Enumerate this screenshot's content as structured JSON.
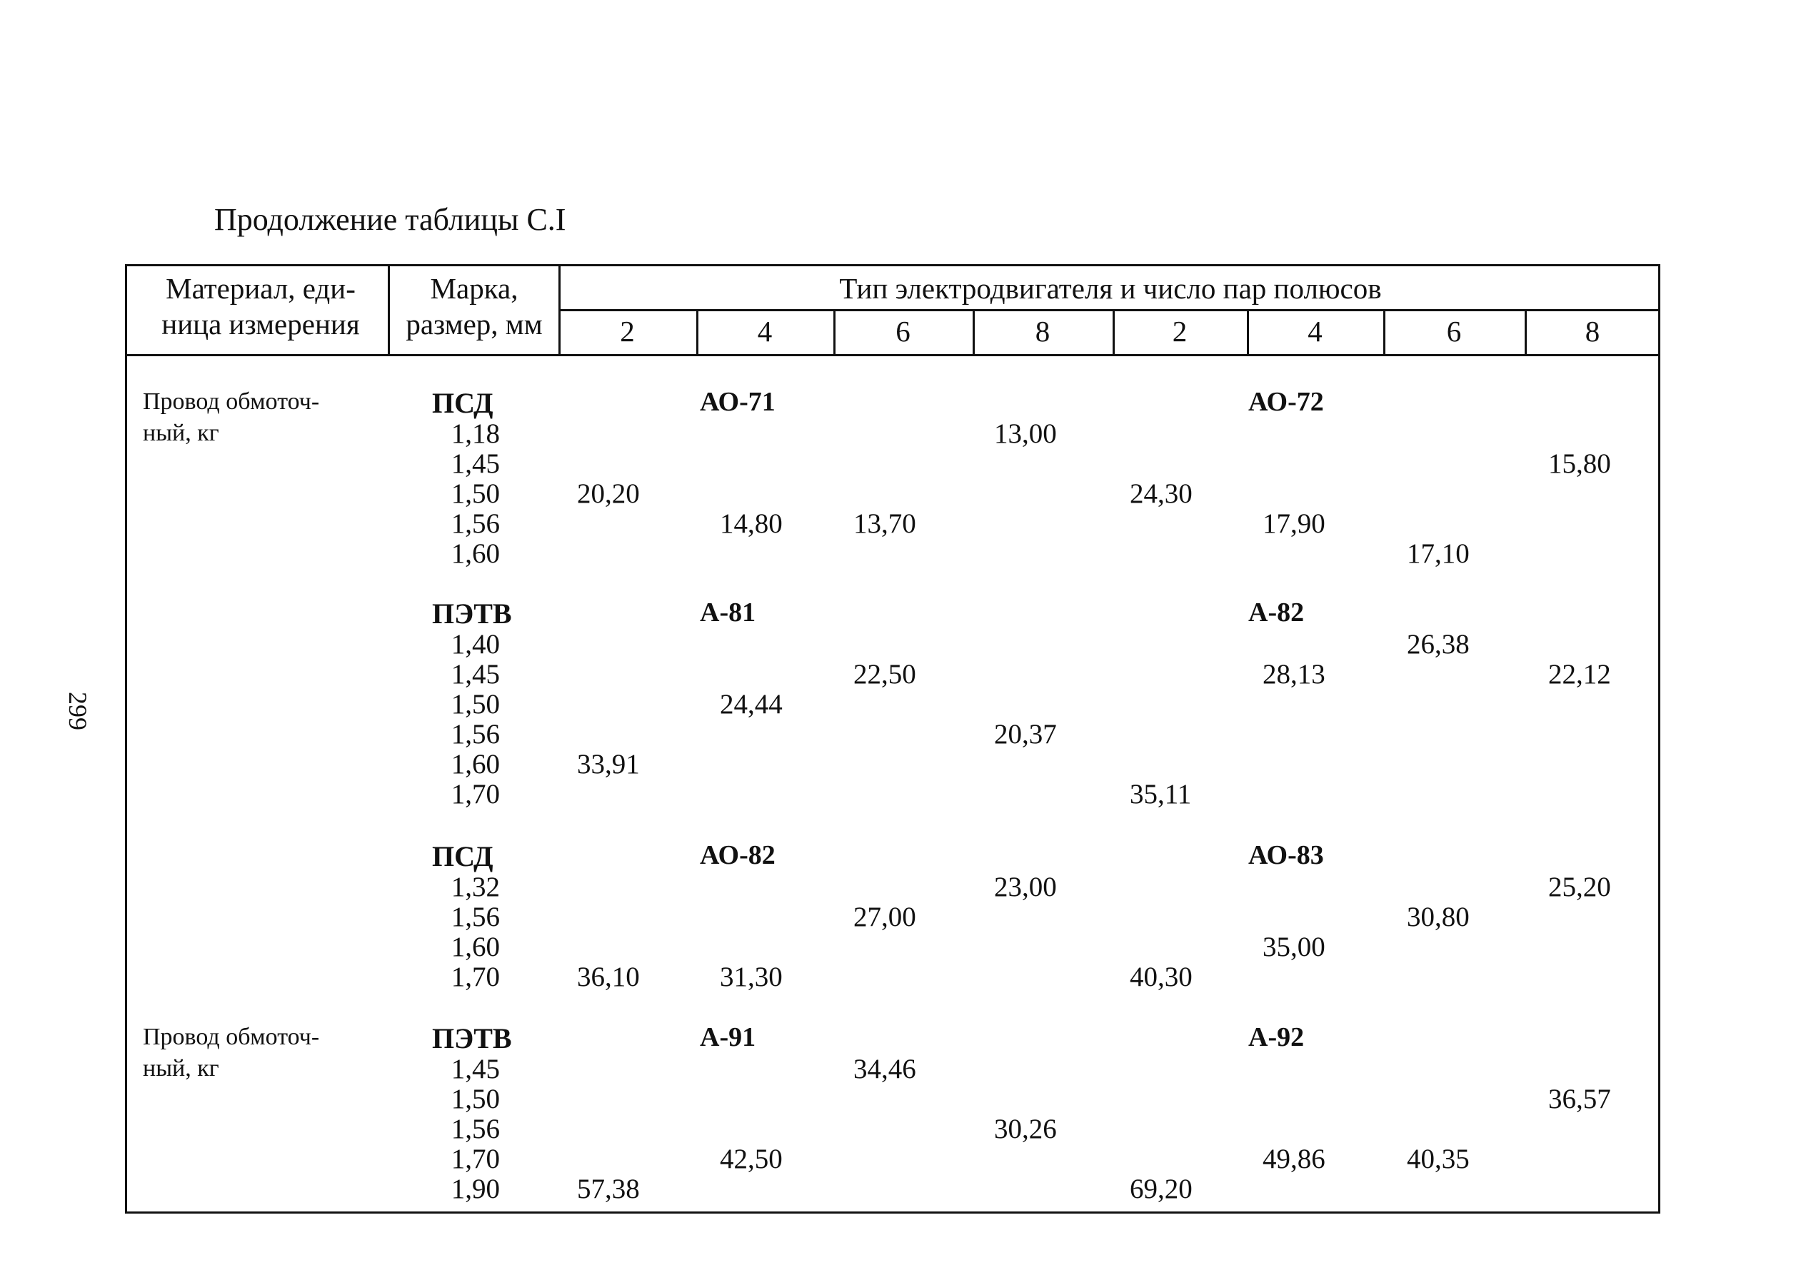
{
  "caption": "Продолжение таблицы С.I",
  "page_number": "299",
  "header": {
    "material_line1": "Материал, еди-",
    "material_line2": "ница измерения",
    "brand_line1": "Марка,",
    "brand_line2": "размер, мм",
    "motor_type": "Тип электродвигателя и число пар полюсов",
    "poles": [
      "2",
      "4",
      "6",
      "8",
      "2",
      "4",
      "6",
      "8"
    ]
  },
  "groups": [
    {
      "material": [
        "Провод обмоточ-",
        "ный, кг"
      ],
      "brand": "ПСД",
      "motor_left": "АО-71",
      "motor_right": "АО-72",
      "rows": [
        {
          "size": "1,18",
          "vals": [
            "",
            "",
            "",
            "13,00",
            "",
            "",
            "",
            ""
          ]
        },
        {
          "size": "1,45",
          "vals": [
            "",
            "",
            "",
            "",
            "",
            "",
            "",
            "15,80"
          ]
        },
        {
          "size": "1,50",
          "vals": [
            "20,20",
            "",
            "",
            "",
            "24,30",
            "",
            "",
            ""
          ]
        },
        {
          "size": "1,56",
          "vals": [
            "",
            "14,80",
            "13,70",
            "",
            "",
            "17,90",
            "",
            ""
          ]
        },
        {
          "size": "1,60",
          "vals": [
            "",
            "",
            "",
            "",
            "",
            "",
            "17,10",
            ""
          ]
        }
      ]
    },
    {
      "material": [],
      "brand": "ПЭТВ",
      "motor_left": "А-81",
      "motor_right": "А-82",
      "rows": [
        {
          "size": "1,40",
          "vals": [
            "",
            "",
            "",
            "",
            "",
            "",
            "26,38",
            ""
          ]
        },
        {
          "size": "1,45",
          "vals": [
            "",
            "",
            "22,50",
            "",
            "",
            "28,13",
            "",
            "22,12"
          ]
        },
        {
          "size": "1,50",
          "vals": [
            "",
            "24,44",
            "",
            "",
            "",
            "",
            "",
            ""
          ]
        },
        {
          "size": "1,56",
          "vals": [
            "",
            "",
            "",
            "20,37",
            "",
            "",
            "",
            ""
          ]
        },
        {
          "size": "1,60",
          "vals": [
            "33,91",
            "",
            "",
            "",
            "",
            "",
            "",
            ""
          ]
        },
        {
          "size": "1,70",
          "vals": [
            "",
            "",
            "",
            "",
            "35,11",
            "",
            "",
            ""
          ]
        }
      ]
    },
    {
      "material": [],
      "brand": "ПСД",
      "motor_left": "АО-82",
      "motor_right": "АО-83",
      "rows": [
        {
          "size": "1,32",
          "vals": [
            "",
            "",
            "",
            "23,00",
            "",
            "",
            "",
            "25,20"
          ]
        },
        {
          "size": "1,56",
          "vals": [
            "",
            "",
            "27,00",
            "",
            "",
            "",
            "30,80",
            ""
          ]
        },
        {
          "size": "1,60",
          "vals": [
            "",
            "",
            "",
            "",
            "",
            "35,00",
            "",
            ""
          ]
        },
        {
          "size": "1,70",
          "vals": [
            "36,10",
            "31,30",
            "",
            "",
            "40,30",
            "",
            "",
            ""
          ]
        }
      ]
    },
    {
      "material": [
        "Провод обмоточ-",
        "ный, кг"
      ],
      "brand": "ПЭТВ",
      "motor_left": "А-91",
      "motor_right": "А-92",
      "rows": [
        {
          "size": "1,45",
          "vals": [
            "",
            "",
            "34,46",
            "",
            "",
            "",
            "",
            ""
          ]
        },
        {
          "size": "1,50",
          "vals": [
            "",
            "",
            "",
            "",
            "",
            "",
            "",
            "36,57"
          ]
        },
        {
          "size": "1,56",
          "vals": [
            "",
            "",
            "",
            "30,26",
            "",
            "",
            "",
            ""
          ]
        },
        {
          "size": "1,70",
          "vals": [
            "",
            "42,50",
            "",
            "",
            "",
            "49,86",
            "40,35",
            ""
          ]
        },
        {
          "size": "1,90",
          "vals": [
            "57,38",
            "",
            "",
            "",
            "69,20",
            "",
            "",
            ""
          ]
        }
      ]
    }
  ]
}
